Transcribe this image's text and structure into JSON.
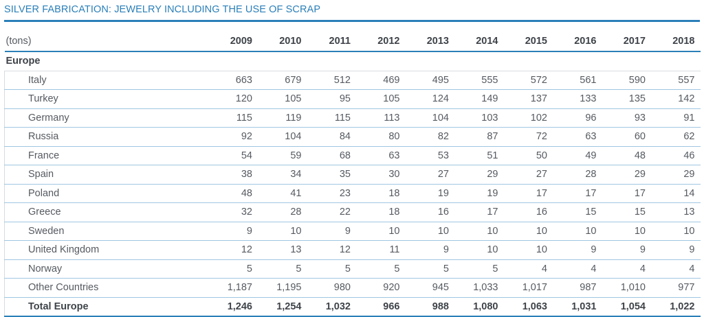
{
  "title": "SILVER FABRICATION: JEWELRY INCLUDING THE USE OF SCRAP",
  "colors": {
    "accent": "#2a7fb8",
    "text": "#555a60",
    "text_strong": "#3e4349",
    "row_rule": "#9fc6e2"
  },
  "table": {
    "unit_label": "(tons)",
    "years": [
      "2009",
      "2010",
      "2011",
      "2012",
      "2013",
      "2014",
      "2015",
      "2016",
      "2017",
      "2018"
    ],
    "group_label": "Europe",
    "rows": [
      {
        "name": "Italy",
        "values": [
          "663",
          "679",
          "512",
          "469",
          "495",
          "555",
          "572",
          "561",
          "590",
          "557"
        ]
      },
      {
        "name": "Turkey",
        "values": [
          "120",
          "105",
          "95",
          "105",
          "124",
          "149",
          "137",
          "133",
          "135",
          "142"
        ]
      },
      {
        "name": "Germany",
        "values": [
          "115",
          "119",
          "115",
          "113",
          "104",
          "103",
          "102",
          "96",
          "93",
          "91"
        ]
      },
      {
        "name": "Russia",
        "values": [
          "92",
          "104",
          "84",
          "80",
          "82",
          "87",
          "72",
          "63",
          "60",
          "62"
        ]
      },
      {
        "name": "France",
        "values": [
          "54",
          "59",
          "68",
          "63",
          "53",
          "51",
          "50",
          "49",
          "48",
          "46"
        ]
      },
      {
        "name": "Spain",
        "values": [
          "38",
          "34",
          "35",
          "30",
          "27",
          "29",
          "27",
          "28",
          "29",
          "29"
        ]
      },
      {
        "name": "Poland",
        "values": [
          "48",
          "41",
          "23",
          "18",
          "19",
          "19",
          "17",
          "17",
          "17",
          "14"
        ]
      },
      {
        "name": "Greece",
        "values": [
          "32",
          "28",
          "22",
          "18",
          "16",
          "17",
          "16",
          "15",
          "15",
          "13"
        ]
      },
      {
        "name": "Sweden",
        "values": [
          "9",
          "10",
          "9",
          "10",
          "10",
          "10",
          "10",
          "10",
          "10",
          "10"
        ]
      },
      {
        "name": "United Kingdom",
        "values": [
          "12",
          "13",
          "12",
          "11",
          "9",
          "10",
          "10",
          "9",
          "9",
          "9"
        ]
      },
      {
        "name": "Norway",
        "values": [
          "5",
          "5",
          "5",
          "5",
          "5",
          "5",
          "4",
          "4",
          "4",
          "4"
        ]
      },
      {
        "name": "Other Countries",
        "values": [
          "1,187",
          "1,195",
          "980",
          "920",
          "945",
          "1,033",
          "1,017",
          "987",
          "1,010",
          "977"
        ]
      }
    ],
    "total": {
      "name": "Total Europe",
      "values": [
        "1,246",
        "1,254",
        "1,032",
        "966",
        "988",
        "1,080",
        "1,063",
        "1,031",
        "1,054",
        "1,022"
      ]
    }
  }
}
